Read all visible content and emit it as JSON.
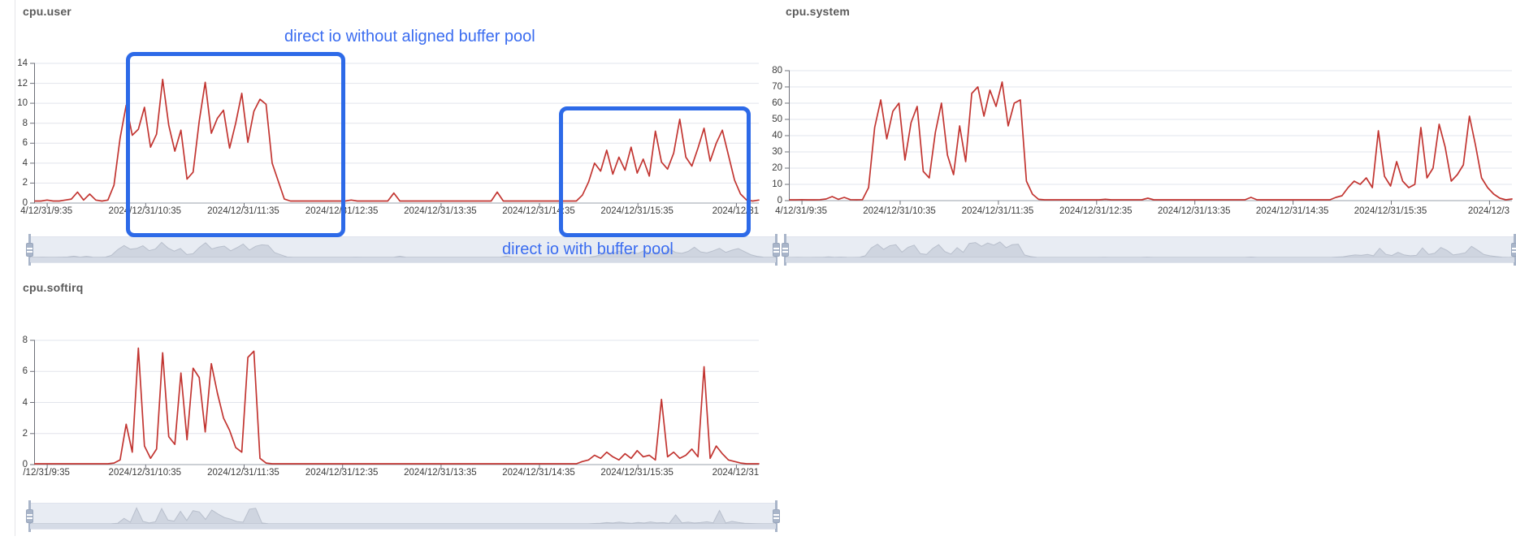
{
  "colors": {
    "annotation_blue": "#3A6CF0",
    "box_blue": "#2D6AE8",
    "series_red": "#C23531",
    "grid_line": "#E2E4EC",
    "axis_line": "#6E7079",
    "slider_track": "#E8ECF3",
    "slider_strip": "#D5DBE6",
    "slider_area_fill": "#CFD5E0",
    "slider_area_stroke": "#B8BFCC",
    "slider_handle": "#A9B5C9"
  },
  "chart_data": [
    {
      "type": "line",
      "title": "cpu.user",
      "ylim": [
        0,
        14
      ],
      "yticks": [
        0,
        2,
        4,
        6,
        8,
        10,
        12,
        14
      ],
      "grid": true,
      "legend": null,
      "has_datazoom_slider": true,
      "xlabels": [
        "4/12/31/9:35",
        "2024/12/31/10:35",
        "2024/12/31/11:35",
        "2024/12/31/12:35",
        "2024/12/31/13:35",
        "2024/12/31/14:35",
        "2024/12/31/15:35",
        "2024/12/31"
      ],
      "annotations": [
        {
          "text": "direct io without aligned buffer pool"
        },
        {
          "text": "direct io with buffer pool"
        }
      ],
      "values": [
        0.2,
        0.2,
        0.3,
        0.2,
        0.2,
        0.3,
        0.4,
        1.1,
        0.3,
        0.9,
        0.3,
        0.2,
        0.3,
        1.8,
        6.5,
        9.8,
        6.8,
        7.4,
        9.6,
        5.6,
        6.9,
        12.4,
        7.8,
        5.2,
        7.3,
        2.4,
        3.1,
        8.2,
        12.1,
        7.0,
        8.5,
        9.3,
        5.5,
        8.0,
        11.0,
        6.1,
        9.2,
        10.4,
        9.9,
        4.0,
        2.2,
        0.4,
        0.2,
        0.2,
        0.2,
        0.2,
        0.2,
        0.2,
        0.2,
        0.2,
        0.2,
        0.2,
        0.3,
        0.2,
        0.2,
        0.2,
        0.2,
        0.2,
        0.2,
        1.0,
        0.2,
        0.2,
        0.2,
        0.2,
        0.2,
        0.2,
        0.2,
        0.2,
        0.2,
        0.2,
        0.2,
        0.2,
        0.2,
        0.2,
        0.2,
        0.2,
        1.1,
        0.2,
        0.2,
        0.2,
        0.2,
        0.2,
        0.2,
        0.2,
        0.2,
        0.2,
        0.2,
        0.2,
        0.2,
        0.2,
        0.8,
        2.1,
        4.0,
        3.2,
        5.3,
        2.9,
        4.6,
        3.3,
        5.6,
        3.0,
        4.4,
        2.7,
        7.2,
        4.1,
        3.4,
        5.0,
        8.4,
        4.6,
        3.7,
        5.5,
        7.5,
        4.2,
        6.0,
        7.3,
        4.8,
        2.3,
        0.9,
        0.3,
        0.2,
        0.3
      ]
    },
    {
      "type": "line",
      "title": "cpu.system",
      "ylim": [
        0,
        80
      ],
      "yticks": [
        0,
        10,
        20,
        30,
        40,
        50,
        60,
        70,
        80
      ],
      "grid": true,
      "legend": null,
      "has_datazoom_slider": true,
      "xlabels": [
        "4/12/31/9:35",
        "2024/12/31/10:35",
        "2024/12/31/11:35",
        "2024/12/31/12:35",
        "2024/12/31/13:35",
        "2024/12/31/14:35",
        "2024/12/31/15:35",
        "2024/12/3"
      ],
      "annotations": [],
      "values": [
        0.5,
        0.5,
        0.6,
        0.5,
        0.5,
        0.6,
        1.0,
        2.5,
        0.8,
        2.0,
        0.6,
        0.5,
        0.6,
        8,
        45,
        62,
        38,
        55,
        60,
        25,
        48,
        58,
        18,
        14,
        42,
        60,
        28,
        16,
        46,
        24,
        66,
        70,
        52,
        68,
        58,
        73,
        46,
        60,
        62,
        12,
        4,
        0.8,
        0.5,
        0.5,
        0.5,
        0.5,
        0.5,
        0.5,
        0.5,
        0.5,
        0.5,
        0.5,
        0.8,
        0.5,
        0.5,
        0.5,
        0.5,
        0.5,
        0.5,
        1.5,
        0.5,
        0.5,
        0.5,
        0.5,
        0.5,
        0.5,
        0.5,
        0.5,
        0.5,
        0.5,
        0.5,
        0.5,
        0.5,
        0.5,
        0.5,
        0.5,
        2.0,
        0.5,
        0.5,
        0.5,
        0.5,
        0.5,
        0.5,
        0.5,
        0.5,
        0.5,
        0.5,
        0.5,
        0.5,
        0.5,
        2.0,
        3,
        8,
        12,
        10,
        14,
        8,
        43,
        15,
        9,
        24,
        12,
        8,
        10,
        45,
        14,
        20,
        47,
        33,
        12,
        16,
        22,
        52,
        34,
        14,
        8,
        4,
        1.5,
        0.5,
        1.0
      ]
    },
    {
      "type": "line",
      "title": "cpu.softirq",
      "ylim": [
        0,
        8
      ],
      "yticks": [
        0,
        2,
        4,
        6,
        8
      ],
      "grid": true,
      "legend": null,
      "has_datazoom_slider": true,
      "xlabels": [
        "/12/31/9:35",
        "2024/12/31/10:35",
        "2024/12/31/11:35",
        "2024/12/31/12:35",
        "2024/12/31/13:35",
        "2024/12/31/14:35",
        "2024/12/31/15:35",
        "2024/12/31"
      ],
      "annotations": [],
      "values": [
        0.05,
        0.05,
        0.05,
        0.05,
        0.05,
        0.05,
        0.05,
        0.05,
        0.05,
        0.05,
        0.05,
        0.05,
        0.05,
        0.1,
        0.3,
        2.6,
        0.8,
        7.5,
        1.2,
        0.4,
        1.0,
        7.2,
        1.8,
        1.3,
        5.9,
        1.6,
        6.2,
        5.6,
        2.1,
        6.5,
        4.6,
        3.0,
        2.2,
        1.1,
        0.8,
        6.9,
        7.3,
        0.4,
        0.1,
        0.05,
        0.05,
        0.05,
        0.05,
        0.05,
        0.05,
        0.05,
        0.05,
        0.05,
        0.05,
        0.05,
        0.05,
        0.05,
        0.05,
        0.05,
        0.05,
        0.05,
        0.05,
        0.05,
        0.05,
        0.05,
        0.05,
        0.05,
        0.05,
        0.05,
        0.05,
        0.05,
        0.05,
        0.05,
        0.05,
        0.05,
        0.05,
        0.05,
        0.05,
        0.05,
        0.05,
        0.05,
        0.05,
        0.05,
        0.05,
        0.05,
        0.05,
        0.05,
        0.05,
        0.05,
        0.05,
        0.05,
        0.05,
        0.05,
        0.05,
        0.05,
        0.2,
        0.3,
        0.6,
        0.4,
        0.8,
        0.5,
        0.3,
        0.7,
        0.4,
        0.9,
        0.5,
        0.6,
        0.3,
        4.2,
        0.5,
        0.8,
        0.4,
        0.6,
        1.0,
        0.5,
        6.3,
        0.4,
        1.2,
        0.7,
        0.3,
        0.2,
        0.1,
        0.05,
        0.05,
        0.05
      ]
    }
  ]
}
